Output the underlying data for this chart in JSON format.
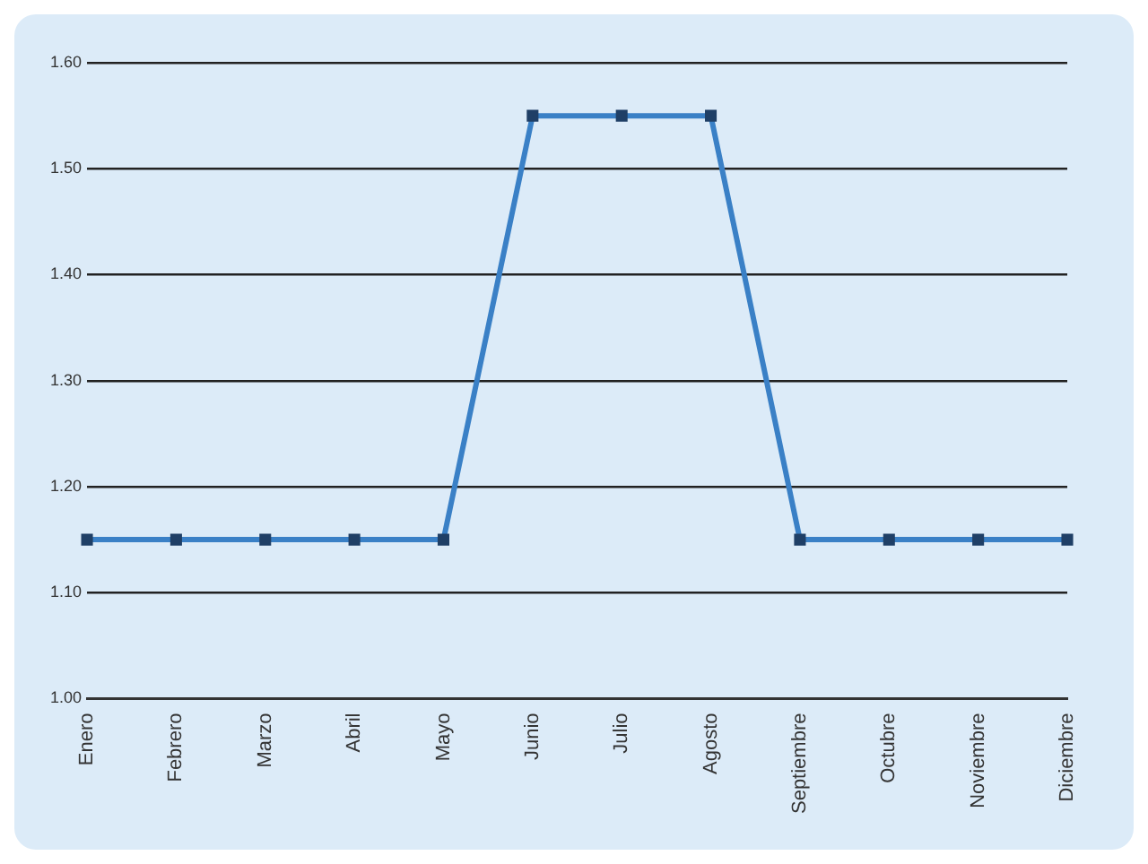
{
  "chart_data": {
    "type": "line",
    "categories": [
      "Enero",
      "Febrero",
      "Marzo",
      "Abril",
      "Mayo",
      "Junio",
      "Julio",
      "Agosto",
      "Septiembre",
      "Octubre",
      "Noviembre",
      "Diciembre"
    ],
    "series": [
      {
        "color": "#3a80c6",
        "values": [
          1.15,
          1.15,
          1.15,
          1.15,
          1.15,
          1.55,
          1.55,
          1.55,
          1.15,
          1.15,
          1.15,
          1.15
        ]
      }
    ],
    "ylim": [
      1.0,
      1.6
    ],
    "yticks": [
      {
        "value": 1.0,
        "label": "1.00"
      },
      {
        "value": 1.1,
        "label": "1.10"
      },
      {
        "value": 1.2,
        "label": "1.20"
      },
      {
        "value": 1.3,
        "label": "1.30"
      },
      {
        "value": 1.4,
        "label": "1.40"
      },
      {
        "value": 1.5,
        "label": "1.50"
      },
      {
        "value": 1.6,
        "label": "1.60"
      }
    ],
    "grid": "y",
    "legend": false,
    "marker": "square",
    "line_style": "solid"
  }
}
